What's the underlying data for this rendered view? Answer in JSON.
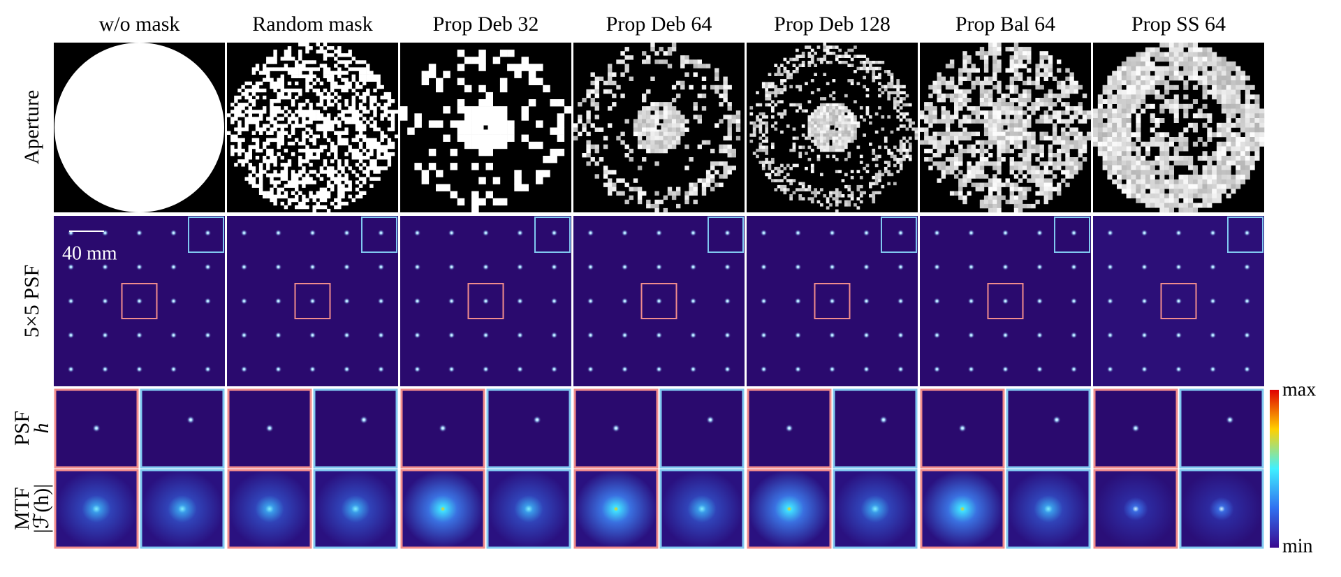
{
  "columns": [
    {
      "title": "w/o mask"
    },
    {
      "title": "Random mask"
    },
    {
      "title": "Prop Deb 32"
    },
    {
      "title": "Prop Deb 64"
    },
    {
      "title": "Prop Deb 128"
    },
    {
      "title": "Prop Bal 64"
    },
    {
      "title": "Prop SS 64"
    }
  ],
  "rows": {
    "aperture": "Aperture",
    "psf_grid": "5×5 PSF",
    "psf": [
      "PSF",
      "h"
    ],
    "mtf": [
      "MTF",
      "|ℱ(h)|"
    ]
  },
  "scale_label": "40 mm",
  "colorbar": {
    "max": "max",
    "min": "min"
  }
}
